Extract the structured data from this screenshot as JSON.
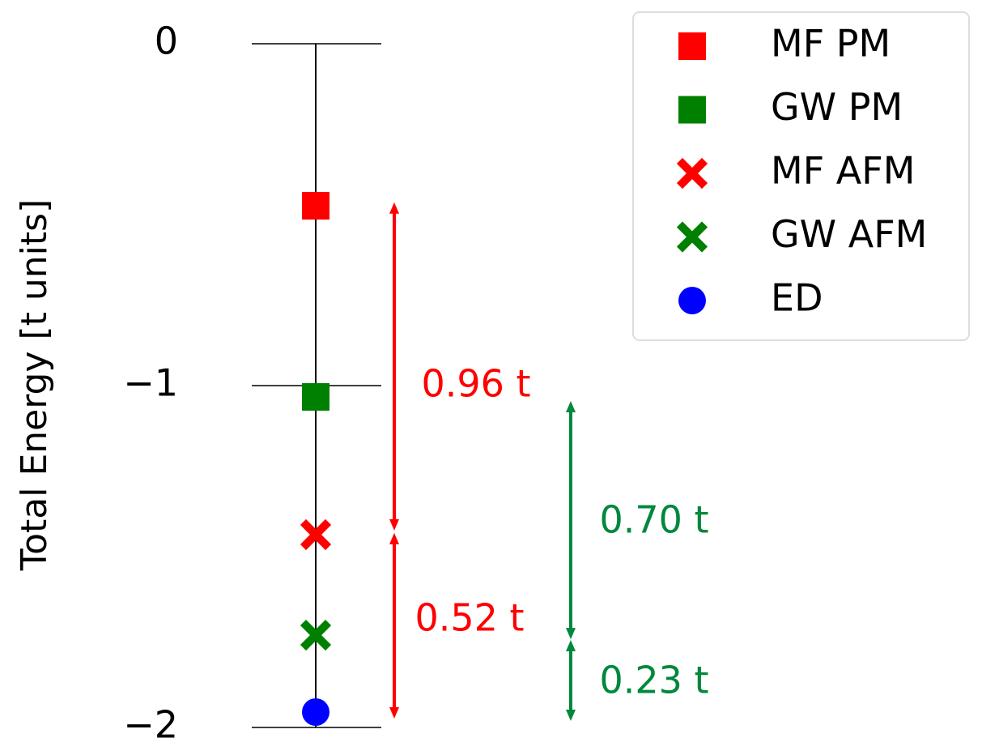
{
  "chart_data": {
    "type": "scatter",
    "ylabel": "Total Energy [t units]",
    "ylim": [
      -2,
      0
    ],
    "yticks": [
      0,
      {
        "value": -1,
        "label": "−1"
      },
      {
        "value": -2,
        "label": "−2"
      }
    ],
    "legend": "upper right",
    "series": [
      {
        "name": "MF PM",
        "color": "#ff0000",
        "marker": "square",
        "values": [
          -0.474
        ]
      },
      {
        "name": "GW PM",
        "color": "#008000",
        "marker": "square",
        "values": [
          -1.033
        ]
      },
      {
        "name": "MF AFM",
        "color": "#ff0000",
        "marker": "x",
        "values": [
          -1.436
        ]
      },
      {
        "name": "GW AFM",
        "color": "#008000",
        "marker": "x",
        "values": [
          -1.73
        ]
      },
      {
        "name": "ED",
        "color": "#0000ff",
        "marker": "circle",
        "values": [
          -1.955
        ]
      }
    ],
    "annotations": [
      {
        "text": "0.96 t",
        "color": "#ff0000",
        "from": -0.464,
        "to": -1.424
      },
      {
        "text": "0.52 t",
        "color": "#ff0000",
        "from": -1.431,
        "to": -1.974
      },
      {
        "text": "0.70 t",
        "color": "#00883c",
        "from": -1.045,
        "to": -1.742
      },
      {
        "text": "0.23 t",
        "color": "#00883c",
        "from": -1.744,
        "to": -1.981
      }
    ]
  }
}
